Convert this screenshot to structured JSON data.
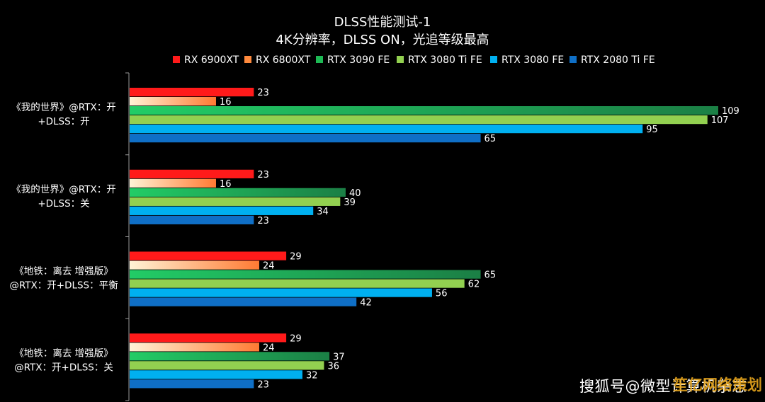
{
  "chart_data": {
    "type": "bar",
    "orientation": "horizontal",
    "title": "DLSS性能测试-1",
    "subtitle": "4K分辨率，DLSS ON，光追等级最高",
    "legend_position": "top",
    "grid": false,
    "xlim": [
      0,
      115
    ],
    "categories": [
      [
        "《我的世界》@RTX：开",
        "+DLSS：开"
      ],
      [
        "《我的世界》@RTX：开",
        "+DLSS：关"
      ],
      [
        "《地铁：离去 增强版》",
        "@RTX：开+DLSS：平衡"
      ],
      [
        "《地铁：离去 增强版》",
        "@RTX：开+DLSS：关"
      ]
    ],
    "series": [
      {
        "name": "RX 6900XT",
        "color": "#ff1a1a",
        "gradient": [
          "#ff1a1a",
          "#ff1a1a"
        ],
        "values": [
          23,
          23,
          29,
          29
        ]
      },
      {
        "name": "RX 6800XT",
        "color": "#ff8a3d",
        "gradient": [
          "#fff3d6",
          "#ff7a33"
        ],
        "values": [
          16,
          16,
          24,
          24
        ]
      },
      {
        "name": "RTX 3090 FE",
        "color": "#1db954",
        "gradient": [
          "#22cc66",
          "#1b7f45"
        ],
        "values": [
          109,
          40,
          65,
          37
        ]
      },
      {
        "name": "RTX 3080 Ti FE",
        "color": "#92d050",
        "gradient": [
          "#92d050",
          "#92d050"
        ],
        "values": [
          107,
          39,
          62,
          36
        ]
      },
      {
        "name": "RTX 3080 FE",
        "color": "#00b0f0",
        "gradient": [
          "#00b0f0",
          "#00b0f0"
        ],
        "values": [
          95,
          34,
          56,
          32
        ]
      },
      {
        "name": "RTX 2080 Ti FE",
        "color": "#0f6fc6",
        "gradient": [
          "#0f6fc6",
          "#0f6fc6"
        ],
        "values": [
          65,
          23,
          42,
          23
        ]
      }
    ]
  },
  "watermark": {
    "text": "搜狐号@微型计算机杂志",
    "overlay": "笙亿网络策划"
  }
}
